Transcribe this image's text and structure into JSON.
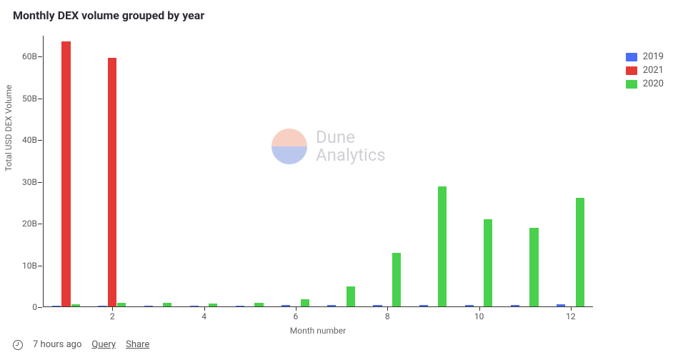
{
  "title": "Monthly DEX volume grouped by year",
  "chart": {
    "type": "bar",
    "x_label": "Month number",
    "y_label": "Total USD DEX Volume",
    "ylim": [
      0,
      65
    ],
    "yticks": [
      0,
      "10B",
      "20B",
      "30B",
      "40B",
      "50B",
      "60B"
    ],
    "ytick_vals": [
      0,
      10,
      20,
      30,
      40,
      50,
      60
    ],
    "xticks": [
      2,
      4,
      6,
      8,
      10,
      12
    ],
    "months": [
      1,
      2,
      3,
      4,
      5,
      6,
      7,
      8,
      9,
      10,
      11,
      12
    ],
    "series": [
      {
        "name": "2019",
        "color": "#4a6cf7",
        "values": [
          0.15,
          0.15,
          0.18,
          0.22,
          0.25,
          0.28,
          0.3,
          0.3,
          0.3,
          0.3,
          0.35,
          0.6
        ]
      },
      {
        "name": "2021",
        "color": "#e53935",
        "values": [
          63.5,
          59.5,
          null,
          null,
          null,
          null,
          null,
          null,
          null,
          null,
          null,
          null
        ]
      },
      {
        "name": "2020",
        "color": "#49d04c",
        "values": [
          0.6,
          0.9,
          0.9,
          0.7,
          0.9,
          1.7,
          4.8,
          12.8,
          28.8,
          20.8,
          18.8,
          26.0
        ]
      }
    ],
    "background_color": "#ffffff",
    "axis_color": "#333333",
    "tick_label_color": "#555555",
    "bar_group_width_ratio": 0.62,
    "title_fontsize": 15,
    "title_fontweight": 700,
    "label_fontsize": 12
  },
  "legend": {
    "items": [
      "2019",
      "2021",
      "2020"
    ],
    "colors": [
      "#4a6cf7",
      "#e53935",
      "#49d04c"
    ]
  },
  "watermark": {
    "line1": "Dune",
    "line2": "Analytics",
    "top_color": "#f08c6a",
    "bottom_color": "#5a74d6"
  },
  "footer": {
    "timestamp": "7 hours ago",
    "query_label": "Query",
    "share_label": "Share"
  }
}
